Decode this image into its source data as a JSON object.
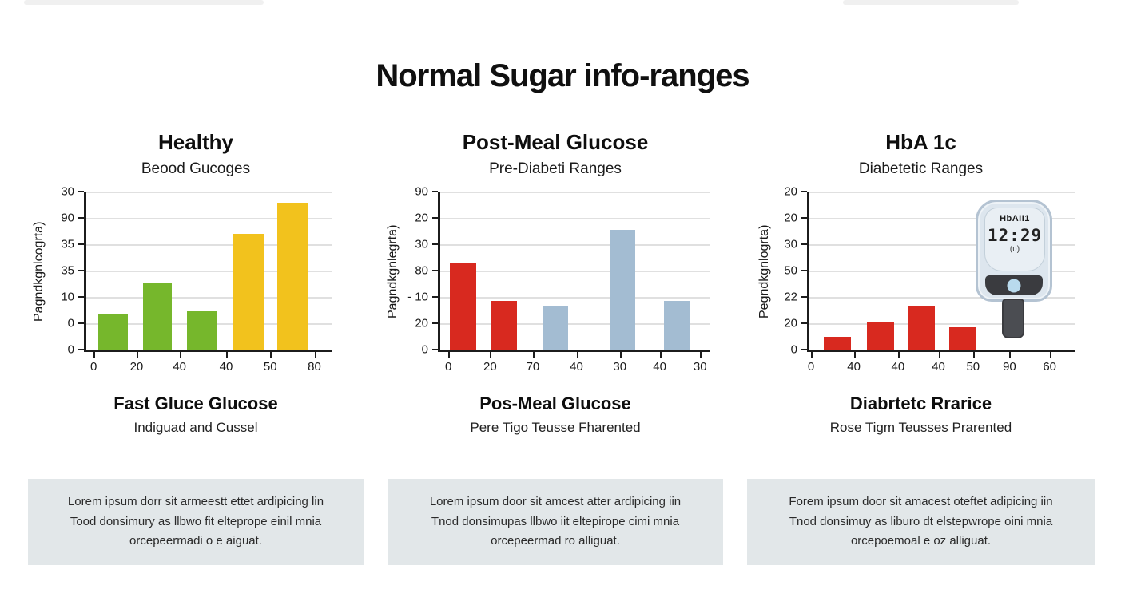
{
  "title": "Normal Sugar info-ranges",
  "colors": {
    "green": "#76b72c",
    "yellow": "#f2c21d",
    "red": "#d8291f",
    "blue": "#a3bcd2",
    "grid": "#e0e0e0",
    "axis": "#1c1c1c",
    "box_bg": "#e2e7e9"
  },
  "columns": [
    {
      "heading": "Healthy",
      "subheading": "Beood Gucoges",
      "caption_title": "Fast Gluce Glucose",
      "caption_subtitle": "Indiguad and Cussel",
      "box_text": "Lorem ipsum dorr sit armeestt ettet ardipicing lin Tood donsimury as llbwo fit elteprope einil mnia orcepeermadi o e aiguat."
    },
    {
      "heading": "Post-Meal Glucose",
      "subheading": "Pre-Diabeti Ranges",
      "caption_title": "Pos-Meal Glucose",
      "caption_subtitle": "Pere Tigo Teusse Fharented",
      "box_text": "Lorem ipsum door sit amcest atter ardipicing iin Tnod donsimupas llbwo iit eltepirope cimi mnia orcepeermad ro alliguat."
    },
    {
      "heading": "HbA 1c",
      "subheading": "Diabetetic Ranges",
      "caption_title": "Diabrtetc Rrarice",
      "caption_subtitle": "Rose Tigm Teusses Prarented",
      "box_text": "Forem ipsum door sit amacest oteftet adipicing iin Tnod donsimuy as liburo dt elstepwrope oini mnia orcepoemoal e oz alliguat."
    }
  ],
  "chart_data": [
    {
      "type": "bar",
      "title": "Healthy",
      "subtitle": "Beood Gucoges",
      "ylabel": "Pagndkgnlcogrta)",
      "ylim": [
        0,
        100
      ],
      "grid": true,
      "y_tick_labels": [
        "30",
        "90",
        "35",
        "35",
        "10",
        "0",
        "0"
      ],
      "x_ticks": [
        {
          "label": "0",
          "pos": 3
        },
        {
          "label": "20",
          "pos": 20.5
        },
        {
          "label": "40",
          "pos": 38
        },
        {
          "label": "40",
          "pos": 57
        },
        {
          "label": "50",
          "pos": 75
        },
        {
          "label": "80",
          "pos": 93
        }
      ],
      "bars": [
        {
          "value": 22,
          "pos": 5,
          "width": 12,
          "color": "green"
        },
        {
          "value": 42,
          "pos": 23,
          "width": 12,
          "color": "green"
        },
        {
          "value": 24,
          "pos": 41,
          "width": 12.5,
          "color": "green"
        },
        {
          "value": 73,
          "pos": 60,
          "width": 12.5,
          "color": "yellow"
        },
        {
          "value": 93,
          "pos": 78,
          "width": 12.5,
          "color": "yellow"
        }
      ]
    },
    {
      "type": "bar",
      "title": "Post-Meal Glucose",
      "subtitle": "Pre-Diabeti Ranges",
      "ylabel": "Pagndkgnlegrta)",
      "ylim": [
        0,
        100
      ],
      "grid": true,
      "y_tick_labels": [
        "90",
        "20",
        "30",
        "80",
        "- 10",
        "20",
        "0"
      ],
      "x_ticks": [
        {
          "label": "0",
          "pos": 3
        },
        {
          "label": "20",
          "pos": 18.5
        },
        {
          "label": "70",
          "pos": 34.4
        },
        {
          "label": "40",
          "pos": 50.6
        },
        {
          "label": "30",
          "pos": 66.7
        },
        {
          "label": "40",
          "pos": 81.5
        },
        {
          "label": "30",
          "pos": 96.5
        }
      ],
      "bars": [
        {
          "value": 55,
          "pos": 3.5,
          "width": 10,
          "color": "red"
        },
        {
          "value": 31,
          "pos": 19,
          "width": 9.5,
          "color": "red"
        },
        {
          "value": 28,
          "pos": 38,
          "width": 9.5,
          "color": "blue"
        },
        {
          "value": 76,
          "pos": 63,
          "width": 9.5,
          "color": "blue"
        },
        {
          "value": 31,
          "pos": 83,
          "width": 9.5,
          "color": "blue"
        }
      ]
    },
    {
      "type": "bar",
      "title": "HbA 1c",
      "subtitle": "Diabetetic Ranges",
      "ylabel": "Pegndkgnlogrta)",
      "ylim": [
        0,
        100
      ],
      "grid": true,
      "y_tick_labels": [
        "20",
        "20",
        "30",
        "50",
        "22",
        "20",
        "0"
      ],
      "x_ticks": [
        {
          "label": "0",
          "pos": 0.6
        },
        {
          "label": "40",
          "pos": 16.7
        },
        {
          "label": "40",
          "pos": 33.3
        },
        {
          "label": "40",
          "pos": 48.5
        },
        {
          "label": "50",
          "pos": 61.5
        },
        {
          "label": "90",
          "pos": 75.2
        },
        {
          "label": "60",
          "pos": 90.3
        }
      ],
      "bars": [
        {
          "value": 8,
          "pos": 5.4,
          "width": 10.3,
          "color": "red"
        },
        {
          "value": 17,
          "pos": 21.6,
          "width": 10.3,
          "color": "red"
        },
        {
          "value": 28,
          "pos": 37.3,
          "width": 9.8,
          "color": "red"
        },
        {
          "value": 14,
          "pos": 52.5,
          "width": 10.2,
          "color": "red"
        }
      ]
    }
  ],
  "meter": {
    "label": "HbAII1",
    "display": "12:29",
    "sub_glyph": "(ʋ)"
  }
}
